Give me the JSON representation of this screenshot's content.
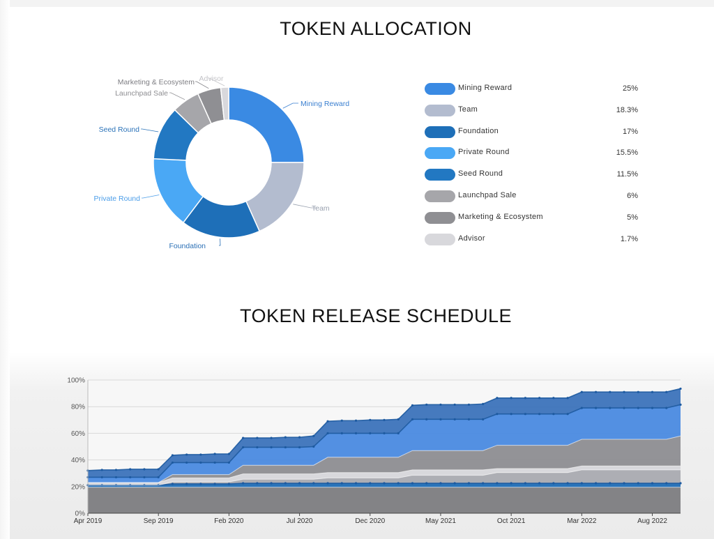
{
  "allocation": {
    "title": "TOKEN ALLOCATION"
  },
  "release": {
    "title": "TOKEN RELEASE SCHEDULE"
  },
  "chart_data": [
    {
      "type": "pie",
      "title": "TOKEN ALLOCATION",
      "donut": true,
      "legend_placement": "right",
      "slices": [
        {
          "label": "Mining Reward",
          "value": 25,
          "display": "25%",
          "color": "#3a8ae3",
          "label_color": "#3a7fd0"
        },
        {
          "label": "Team",
          "value": 18.3,
          "display": "18.3%",
          "color": "#b3bccf",
          "label_color": "#9aa2b0"
        },
        {
          "label": "Foundation",
          "value": 17,
          "display": "17%",
          "color": "#1e6fb8",
          "label_color": "#2a6fb5"
        },
        {
          "label": "Private Round",
          "value": 15.5,
          "display": "15.5%",
          "color": "#4aa8f5",
          "label_color": "#4a9de8"
        },
        {
          "label": "Seed Round",
          "value": 11.5,
          "display": "11.5%",
          "color": "#2278c2",
          "label_color": "#2a72b8"
        },
        {
          "label": "Launchpad Sale",
          "value": 6,
          "display": "6%",
          "color": "#a6a6aa",
          "label_color": "#8e8e92"
        },
        {
          "label": "Marketing & Ecosystem",
          "value": 5,
          "display": "5%",
          "color": "#8f8f93",
          "label_color": "#7d7d82"
        },
        {
          "label": "Advisor",
          "value": 1.7,
          "display": "1.7%",
          "color": "#d8d8dc",
          "label_color": "#c4c4c8"
        }
      ]
    },
    {
      "type": "area",
      "title": "TOKEN RELEASE SCHEDULE",
      "stacked": true,
      "grid": true,
      "ylim": [
        0,
        100
      ],
      "y_ticks": [
        0,
        20,
        40,
        60,
        80,
        100
      ],
      "y_tick_labels": [
        "0%",
        "20%",
        "40%",
        "60%",
        "80%",
        "100%"
      ],
      "x_ticks": [
        "2019-04",
        "2019-09",
        "2020-02",
        "2020-07",
        "2020-12",
        "2021-05",
        "2021-10",
        "2022-03",
        "2022-08"
      ],
      "x_tick_labels": [
        "Apr 2019",
        "Sep 2019",
        "Feb 2020",
        "Jul 2020",
        "Dec 2020",
        "May 2021",
        "Oct 2021",
        "Mar 2022",
        "Aug 2022"
      ],
      "x": [
        "2019-04",
        "2019-05",
        "2019-06",
        "2019-07",
        "2019-08",
        "2019-09",
        "2019-10",
        "2019-11",
        "2019-12",
        "2020-01",
        "2020-02",
        "2020-03",
        "2020-04",
        "2020-05",
        "2020-06",
        "2020-07",
        "2020-08",
        "2020-09",
        "2020-10",
        "2020-11",
        "2020-12",
        "2021-01",
        "2021-02",
        "2021-03",
        "2021-04",
        "2021-05",
        "2021-06",
        "2021-07",
        "2021-08",
        "2021-09",
        "2021-10",
        "2021-11",
        "2021-12",
        "2022-01",
        "2022-02",
        "2022-03",
        "2022-04",
        "2022-05",
        "2022-06",
        "2022-07",
        "2022-08",
        "2022-09",
        "2022-10"
      ],
      "series": [
        {
          "color": "#7c7c80",
          "values": [
            19.5,
            19.5,
            19.5,
            19.5,
            19.5,
            19.5,
            19.5,
            19.5,
            19.5,
            19.5,
            19.5,
            19.5,
            19.5,
            19.5,
            19.5,
            19.5,
            19.5,
            19.5,
            19.5,
            19.5,
            19.5,
            19.5,
            19.5,
            19.5,
            19.5,
            19.5,
            19.5,
            19.5,
            19.5,
            19.5,
            19.5,
            19.5,
            19.5,
            19.5,
            19.5,
            19.5,
            19.5,
            19.5,
            19.5,
            19.5,
            19.5,
            19.5,
            19.5
          ]
        },
        {
          "color": "#1f6db5",
          "values": [
            1.5,
            1.5,
            1.5,
            1.5,
            1.5,
            1.5,
            2.5,
            2.5,
            2.5,
            2.5,
            2.5,
            3,
            3,
            3,
            3,
            3,
            3,
            3,
            3,
            3,
            3,
            3,
            3,
            3,
            3,
            3,
            3,
            3,
            3,
            3,
            3,
            3,
            3,
            3,
            3,
            3,
            3,
            3,
            3,
            3,
            3,
            3,
            3
          ]
        },
        {
          "color": "#a9aab0",
          "values": [
            0,
            0,
            0,
            0,
            0,
            0,
            1.5,
            1.5,
            1.5,
            1.5,
            1.5,
            3,
            3,
            3,
            3,
            3,
            3,
            4,
            4,
            4,
            4,
            4,
            4,
            6,
            6,
            6,
            6,
            6,
            6,
            8,
            8,
            8,
            8,
            8,
            8,
            10,
            10,
            10,
            10,
            10,
            10,
            10,
            10
          ]
        },
        {
          "color": "#d6d6da",
          "values": [
            2,
            2,
            2,
            2,
            2,
            2,
            3,
            3,
            3,
            3,
            3,
            4,
            4,
            4,
            4,
            4,
            4,
            4,
            4,
            4,
            4,
            4,
            4,
            4,
            4,
            4,
            4,
            4,
            4,
            3,
            3,
            3,
            3,
            3,
            3,
            3,
            3,
            3,
            3,
            3,
            3,
            3,
            3
          ]
        },
        {
          "color": "#8d8d91",
          "values": [
            0,
            0,
            0,
            0,
            0,
            0,
            2.5,
            2.5,
            2.5,
            2.5,
            2.5,
            6.5,
            6.5,
            6.5,
            6.5,
            6.5,
            6.5,
            11.5,
            11.5,
            11.5,
            11.5,
            11.5,
            11.5,
            14.5,
            14.5,
            14.5,
            14.5,
            14.5,
            14.5,
            17.5,
            17.5,
            17.5,
            17.5,
            17.5,
            17.5,
            20,
            20,
            20,
            20,
            20,
            20,
            20,
            22.5
          ]
        },
        {
          "color": "#4a8ae0",
          "values": [
            4,
            4,
            4,
            4,
            4,
            4,
            9,
            9,
            9,
            9,
            9,
            13.5,
            13.5,
            13.5,
            13.5,
            13.5,
            14,
            18,
            18,
            18,
            18,
            18,
            18,
            23.5,
            23.5,
            23.5,
            23.5,
            23.5,
            23.5,
            23.5,
            23.5,
            23.5,
            23.5,
            23.5,
            23.5,
            23.5,
            23.5,
            23.5,
            23.5,
            23.5,
            23.5,
            23.5,
            23.5
          ]
        },
        {
          "color": "#3c73bb",
          "values": [
            5,
            5.5,
            5.5,
            6,
            6,
            6,
            5.5,
            6,
            6,
            6.5,
            6.5,
            7,
            7,
            7,
            7.5,
            7.5,
            8,
            9,
            9.5,
            9.5,
            10,
            10,
            10.5,
            10.5,
            11,
            11,
            11,
            11,
            11.5,
            12,
            12,
            12,
            12,
            12,
            12,
            12,
            12,
            12,
            12,
            12,
            12,
            12,
            12
          ]
        }
      ]
    }
  ]
}
